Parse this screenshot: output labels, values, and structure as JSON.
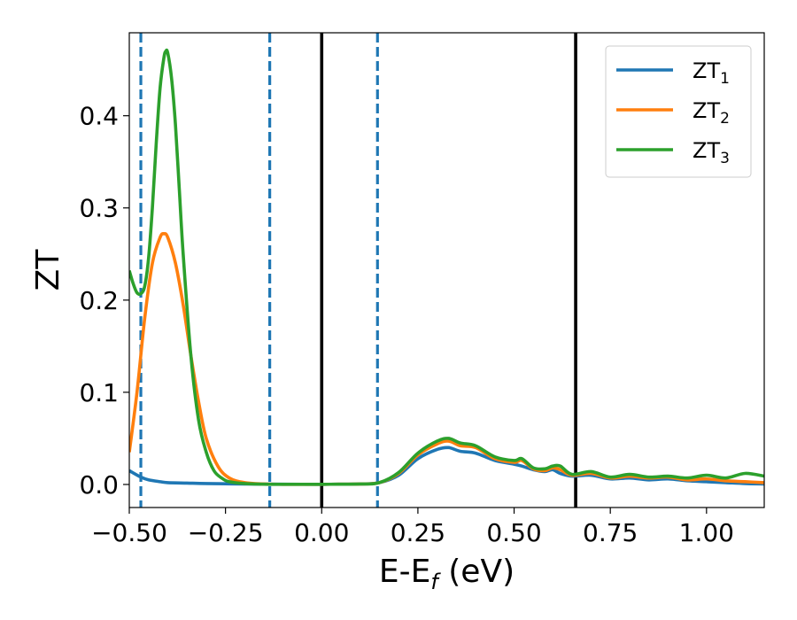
{
  "chart_data": {
    "type": "line",
    "title": "",
    "xlabel": "E-E",
    "xlabel_sub": "f",
    "xlabel_unit": " (eV)",
    "ylabel": "ZT",
    "xlim": [
      -0.5,
      1.15
    ],
    "ylim": [
      -0.025,
      0.49
    ],
    "x_ticks": [
      -0.5,
      -0.25,
      0.0,
      0.25,
      0.5,
      0.75,
      1.0
    ],
    "x_tick_labels": [
      "−0.50",
      "−0.25",
      "0.00",
      "0.25",
      "0.50",
      "0.75",
      "1.00"
    ],
    "y_ticks": [
      0.0,
      0.1,
      0.2,
      0.3,
      0.4
    ],
    "y_tick_labels": [
      "0.0",
      "0.1",
      "0.2",
      "0.3",
      "0.4"
    ],
    "grid": false,
    "legend_position": "top-right",
    "series": [
      {
        "name": "ZT",
        "name_sub": "1",
        "color": "#1f77b4",
        "x": [
          -0.5,
          -0.47,
          -0.45,
          -0.42,
          -0.4,
          -0.35,
          -0.3,
          -0.2,
          -0.1,
          0.0,
          0.1,
          0.15,
          0.2,
          0.25,
          0.3,
          0.33,
          0.36,
          0.4,
          0.45,
          0.5,
          0.52,
          0.55,
          0.58,
          0.6,
          0.62,
          0.65,
          0.7,
          0.75,
          0.8,
          0.85,
          0.9,
          0.95,
          1.0,
          1.05,
          1.1,
          1.15
        ],
        "y": [
          0.015,
          0.008,
          0.005,
          0.003,
          0.002,
          0.0015,
          0.001,
          0.0005,
          0.0003,
          0.0002,
          0.0005,
          0.002,
          0.01,
          0.028,
          0.038,
          0.04,
          0.036,
          0.034,
          0.026,
          0.022,
          0.02,
          0.016,
          0.014,
          0.016,
          0.012,
          0.009,
          0.01,
          0.006,
          0.007,
          0.005,
          0.006,
          0.004,
          0.003,
          0.002,
          0.001,
          0.0005
        ]
      },
      {
        "name": "ZT",
        "name_sub": "2",
        "color": "#ff7f0e",
        "x": [
          -0.5,
          -0.48,
          -0.46,
          -0.44,
          -0.42,
          -0.41,
          -0.4,
          -0.38,
          -0.36,
          -0.34,
          -0.32,
          -0.3,
          -0.27,
          -0.24,
          -0.2,
          -0.15,
          -0.1,
          0.0,
          0.1,
          0.15,
          0.2,
          0.25,
          0.3,
          0.33,
          0.36,
          0.4,
          0.45,
          0.5,
          0.52,
          0.55,
          0.58,
          0.6,
          0.62,
          0.65,
          0.7,
          0.75,
          0.8,
          0.85,
          0.9,
          0.95,
          1.0,
          1.05,
          1.1,
          1.15
        ],
        "y": [
          0.035,
          0.1,
          0.18,
          0.24,
          0.268,
          0.272,
          0.268,
          0.24,
          0.195,
          0.14,
          0.09,
          0.05,
          0.02,
          0.007,
          0.002,
          0.0005,
          0.0002,
          0.0002,
          0.0005,
          0.002,
          0.012,
          0.032,
          0.044,
          0.047,
          0.042,
          0.04,
          0.028,
          0.024,
          0.026,
          0.017,
          0.015,
          0.018,
          0.016,
          0.01,
          0.012,
          0.007,
          0.009,
          0.007,
          0.008,
          0.005,
          0.006,
          0.004,
          0.003,
          0.002
        ]
      },
      {
        "name": "ZT",
        "name_sub": "3",
        "color": "#2ca02c",
        "x": [
          -0.5,
          -0.49,
          -0.48,
          -0.47,
          -0.46,
          -0.45,
          -0.44,
          -0.43,
          -0.42,
          -0.41,
          -0.405,
          -0.4,
          -0.39,
          -0.38,
          -0.37,
          -0.36,
          -0.34,
          -0.32,
          -0.3,
          -0.28,
          -0.26,
          -0.24,
          -0.2,
          -0.15,
          -0.1,
          0.0,
          0.1,
          0.15,
          0.2,
          0.25,
          0.3,
          0.33,
          0.36,
          0.4,
          0.45,
          0.5,
          0.52,
          0.55,
          0.58,
          0.6,
          0.62,
          0.65,
          0.7,
          0.75,
          0.8,
          0.85,
          0.9,
          0.95,
          1.0,
          1.05,
          1.1,
          1.15
        ],
        "y": [
          0.232,
          0.218,
          0.208,
          0.207,
          0.215,
          0.245,
          0.3,
          0.37,
          0.43,
          0.463,
          0.47,
          0.468,
          0.44,
          0.39,
          0.32,
          0.25,
          0.14,
          0.07,
          0.035,
          0.015,
          0.007,
          0.003,
          0.001,
          0.0003,
          0.0002,
          0.0002,
          0.0005,
          0.002,
          0.013,
          0.034,
          0.047,
          0.05,
          0.045,
          0.042,
          0.03,
          0.026,
          0.028,
          0.018,
          0.017,
          0.02,
          0.02,
          0.011,
          0.014,
          0.008,
          0.011,
          0.008,
          0.009,
          0.007,
          0.01,
          0.007,
          0.012,
          0.009
        ]
      }
    ],
    "vertical_lines": [
      {
        "x": -0.47,
        "style": "dashed",
        "color": "#1f77b4"
      },
      {
        "x": -0.135,
        "style": "dashed",
        "color": "#1f77b4"
      },
      {
        "x": 0.145,
        "style": "dashed",
        "color": "#1f77b4"
      },
      {
        "x": 0.0,
        "style": "solid",
        "color": "#000000"
      },
      {
        "x": 0.66,
        "style": "solid",
        "color": "#000000"
      }
    ]
  }
}
